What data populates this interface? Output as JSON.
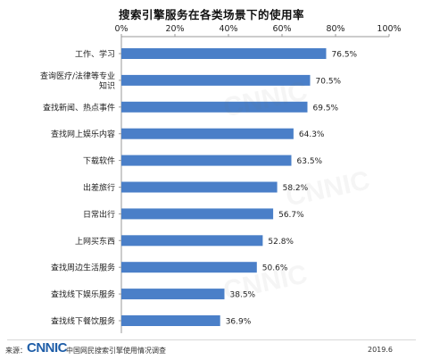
{
  "chart_data": {
    "type": "bar",
    "orientation": "horizontal",
    "title": "搜索引擎服务在各类场景下的使用率",
    "xlim": [
      0,
      100
    ],
    "x_ticks": [
      "0%",
      "20%",
      "40%",
      "60%",
      "80%",
      "100%"
    ],
    "tick_values": [
      0,
      20,
      40,
      60,
      80,
      100
    ],
    "categories": [
      "工作、学习",
      "查询医疗/法律等专业知识",
      "查找新闻、热点事件",
      "查找网上娱乐内容",
      "下载软件",
      "出差旅行",
      "日常出行",
      "上网买东西",
      "查找周边生活服务",
      "查找线下娱乐服务",
      "查找线下餐饮服务"
    ],
    "category_lines": [
      [
        "工作、学习"
      ],
      [
        "查询医疗/法律等专业",
        "知识"
      ],
      [
        "查找新闻、热点事件"
      ],
      [
        "查找网上娱乐内容"
      ],
      [
        "下载软件"
      ],
      [
        "出差旅行"
      ],
      [
        "日常出行"
      ],
      [
        "上网买东西"
      ],
      [
        "查找周边生活服务"
      ],
      [
        "查找线下娱乐服务"
      ],
      [
        "查找线下餐饮服务"
      ]
    ],
    "values": [
      76.5,
      70.5,
      69.5,
      64.3,
      63.5,
      58.2,
      56.7,
      52.8,
      50.6,
      38.5,
      36.9
    ],
    "value_labels": [
      "76.5%",
      "70.5%",
      "69.5%",
      "64.3%",
      "63.5%",
      "58.2%",
      "56.7%",
      "52.8%",
      "50.6%",
      "38.5%",
      "36.9%"
    ],
    "bar_color": "#4a7fc8",
    "grid": false
  },
  "footer": {
    "source_label": "来源：",
    "logo_text": "CNNIC",
    "org_text": "中国网民搜索引擎使用情况调查",
    "date": "2019.6"
  }
}
